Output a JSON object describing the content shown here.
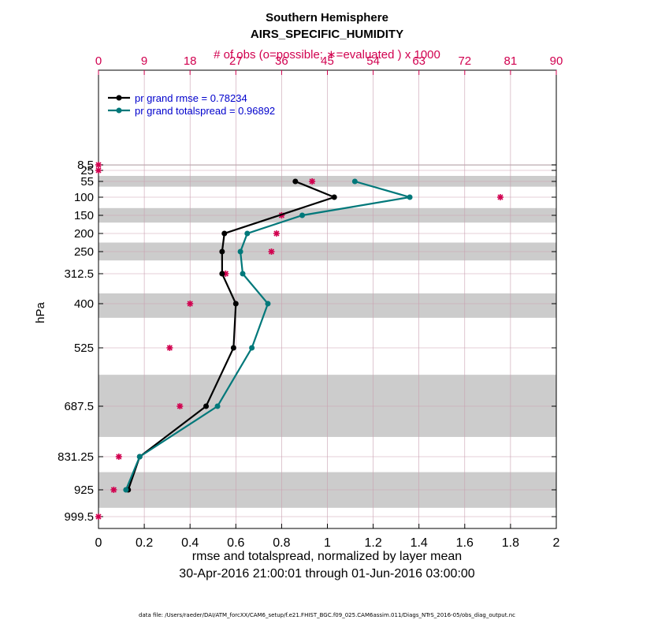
{
  "chart_data": {
    "type": "line",
    "title": "Southern Hemisphere",
    "subtitle": "AIRS_SPECIFIC_HUMIDITY",
    "top_axis_label": "# of obs (o=possible; ∗=evaluated ) x 1000",
    "xlabel": "rmse and totalspread, normalized by layer mean",
    "date_range": "30-Apr-2016 21:00:01 through 01-Jun-2016 03:00:00",
    "ylabel": "hPa",
    "footer": "data file: /Users/raeder/DAI/ATM_forcXX/CAM6_setup/f.e21.FHIST_BGC.f09_025.CAM6assim.011/Diags_NTrS_2016-05/obs_diag_output.nc",
    "xlim": [
      0,
      2
    ],
    "xticks": [
      "0",
      "0.2",
      "0.4",
      "0.6",
      "0.8",
      "1",
      "1.2",
      "1.4",
      "1.6",
      "1.8",
      "2"
    ],
    "top_xlim": [
      0,
      90
    ],
    "top_xticks": [
      "0",
      "9",
      "18",
      "27",
      "36",
      "45",
      "54",
      "63",
      "72",
      "81",
      "90"
    ],
    "yticks": [
      "8.5",
      "25",
      "55",
      "100",
      "150",
      "200",
      "250",
      "312.5",
      "400",
      "525",
      "687.5",
      "831.25",
      "925",
      "999.5"
    ],
    "grid": true,
    "legend_position": "top-left",
    "series": [
      {
        "name": "pr grand rmse = 0.78234",
        "color": "#000000",
        "points": [
          [
            0.86,
            55
          ],
          [
            1.03,
            100
          ],
          [
            0.55,
            200
          ],
          [
            0.54,
            250
          ],
          [
            0.54,
            312.5
          ],
          [
            0.6,
            400
          ],
          [
            0.59,
            525
          ],
          [
            0.47,
            687.5
          ],
          [
            0.18,
            831.25
          ],
          [
            0.13,
            925
          ]
        ]
      },
      {
        "name": "pr grand totalspread = 0.96892",
        "color": "#00787a",
        "points": [
          [
            1.12,
            55
          ],
          [
            1.36,
            100
          ],
          [
            0.89,
            150
          ],
          [
            0.65,
            200
          ],
          [
            0.62,
            250
          ],
          [
            0.63,
            312.5
          ],
          [
            0.74,
            400
          ],
          [
            0.67,
            525
          ],
          [
            0.52,
            687.5
          ],
          [
            0.18,
            831.25
          ],
          [
            0.12,
            925
          ]
        ]
      }
    ],
    "obs_counts": {
      "color": "#d1004f",
      "units": "x 1000",
      "points": [
        [
          0,
          8.5
        ],
        [
          0,
          25
        ],
        [
          42,
          55
        ],
        [
          79,
          100
        ],
        [
          36,
          150
        ],
        [
          35,
          200
        ],
        [
          34,
          250
        ],
        [
          25,
          312.5
        ],
        [
          18,
          400
        ],
        [
          14,
          525
        ],
        [
          16,
          687.5
        ],
        [
          4,
          831.25
        ],
        [
          3,
          925
        ],
        [
          0,
          999.5
        ]
      ]
    },
    "shaded_layers": [
      [
        7,
        11
      ],
      [
        40,
        70
      ],
      [
        130,
        170
      ],
      [
        225,
        275
      ],
      [
        370,
        440
      ],
      [
        600,
        775
      ],
      [
        875,
        975
      ]
    ],
    "line_colors": {
      "grid": "#c9a0b0",
      "shade": "#cccccc"
    }
  }
}
